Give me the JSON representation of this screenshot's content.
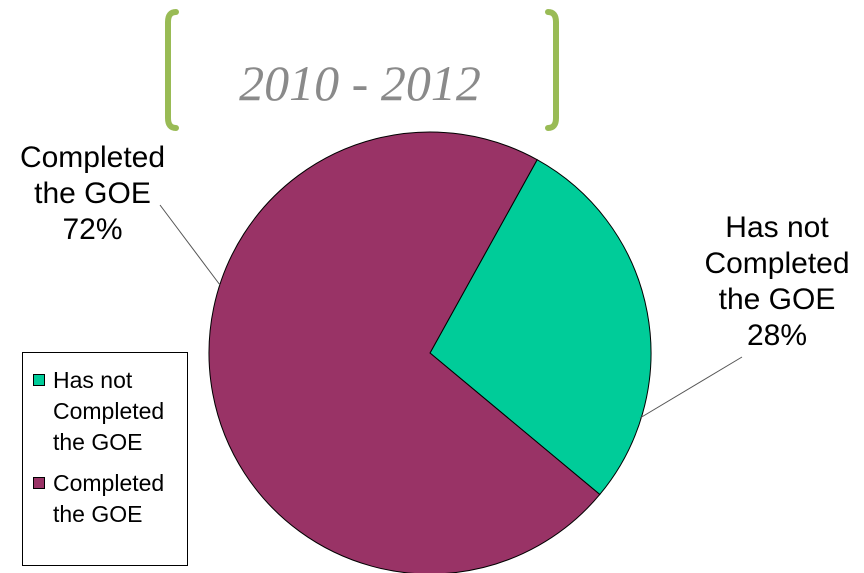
{
  "chart_data": {
    "type": "pie",
    "title": "2010 - 2012",
    "slices": [
      {
        "name": "Has not Completed the GOE",
        "label_lines": [
          "Has not",
          "Completed",
          "the GOE"
        ],
        "legend_lines": [
          "Has not",
          "Completed",
          "the GOE"
        ],
        "value": 28,
        "value_label": "28%",
        "color": "#00cc99"
      },
      {
        "name": "Completed the GOE",
        "label_lines": [
          "Completed",
          "the GOE"
        ],
        "legend_lines": [
          "Completed",
          "the GOE"
        ],
        "value": 72,
        "value_label": "72%",
        "color": "#993366"
      }
    ],
    "legend_position": "bottom-left",
    "title_decoration_color": "#99bb55"
  }
}
